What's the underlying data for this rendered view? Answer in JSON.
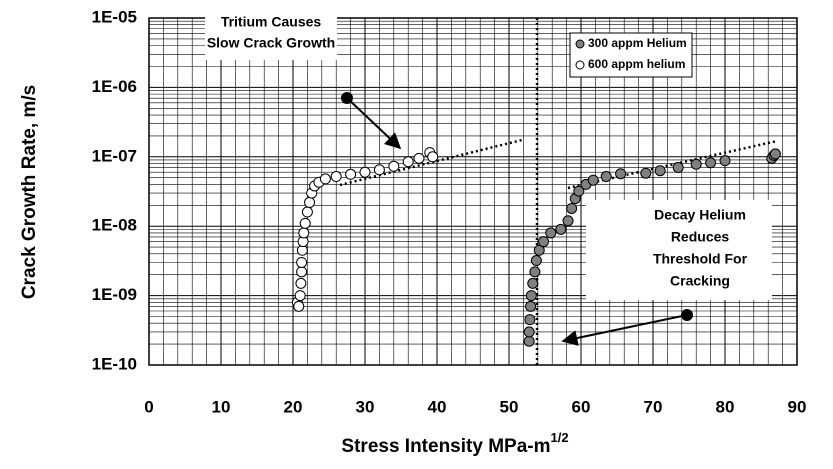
{
  "chart_data": {
    "type": "scatter",
    "xlabel": "Stress Intensity MPa-m",
    "xlabel_superscript": "1/2",
    "ylabel": "Crack Growth Rate, m/s",
    "xlim": [
      0,
      90
    ],
    "xticks": [
      0,
      10,
      20,
      30,
      40,
      50,
      60,
      70,
      80,
      90
    ],
    "ylim": [
      1e-10,
      1e-05
    ],
    "yticks": [
      {
        "value": 1e-10,
        "label": "1E-10"
      },
      {
        "value": 1e-09,
        "label": "1E-09"
      },
      {
        "value": 1e-08,
        "label": "1E-08"
      },
      {
        "value": 1e-07,
        "label": "1E-07"
      },
      {
        "value": 1e-06,
        "label": "1E-06"
      },
      {
        "value": 1e-05,
        "label": "1E-05"
      }
    ],
    "ylog": true,
    "grid": true,
    "legend": "upper right",
    "annotations": [
      [
        "Tritium Causes",
        "Slow Crack Growth"
      ],
      [
        "Decay Helium",
        "Reduces",
        "Threshold For",
        "Cracking"
      ]
    ],
    "series": [
      {
        "name": "300 appm Helium",
        "color": "#808080",
        "x": [
          52.8,
          52.8,
          52.9,
          53.0,
          53.1,
          53.3,
          53.6,
          53.8,
          54.2,
          54.8,
          55.8,
          57.2,
          58.2,
          58.7,
          59.2,
          59.7,
          60.7,
          61.7,
          63.5,
          65.5,
          69,
          71,
          73.5,
          76,
          78,
          80,
          86.5,
          86.8,
          87
        ],
        "values": [
          2.2e-10,
          3e-10,
          4.5e-10,
          7e-10,
          1e-09,
          1.5e-09,
          2.2e-09,
          3.2e-09,
          4.5e-09,
          6e-09,
          8e-09,
          9e-09,
          1.2e-08,
          1.8e-08,
          2.5e-08,
          3.2e-08,
          4e-08,
          4.6e-08,
          5.2e-08,
          5.7e-08,
          5.8e-08,
          6.3e-08,
          7e-08,
          7.8e-08,
          8.2e-08,
          8.8e-08,
          9.5e-08,
          1.05e-07,
          1.1e-07
        ]
      },
      {
        "name": "600 appm helium",
        "color": "#ffffff",
        "x": [
          20.6,
          20.8,
          21.0,
          21.1,
          21.2,
          21.2,
          21.3,
          21.4,
          21.5,
          21.7,
          22.0,
          22.3,
          22.6,
          23.0,
          23.6,
          24.5,
          26,
          28,
          30,
          32,
          34,
          36,
          37.5,
          39,
          39.4
        ],
        "values": [
          8e-10,
          7e-10,
          1e-09,
          1.5e-09,
          2.2e-09,
          3e-09,
          4.5e-09,
          6e-09,
          8e-09,
          1.1e-08,
          1.6e-08,
          2.2e-08,
          3e-08,
          3.8e-08,
          4.3e-08,
          4.8e-08,
          5.2e-08,
          5.6e-08,
          6e-08,
          6.5e-08,
          7.3e-08,
          8.5e-08,
          9.5e-08,
          1.15e-07,
          1e-07
        ]
      }
    ]
  }
}
